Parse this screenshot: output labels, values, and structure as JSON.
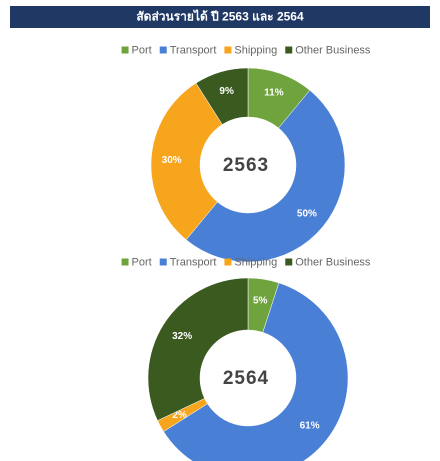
{
  "title": "สัดส่วนรายได้ ปี 2563 และ 2564",
  "chart_data": [
    {
      "type": "donut",
      "center_label": "2563",
      "categories": [
        "Port",
        "Transport",
        "Shipping",
        "Other Business"
      ],
      "values": [
        11,
        50,
        30,
        9
      ],
      "value_labels": [
        "11%",
        "50%",
        "30%",
        "9%"
      ],
      "colors": [
        "#6fa33e",
        "#4a7fd6",
        "#f6a51c",
        "#3b5a1f"
      ]
    },
    {
      "type": "donut",
      "center_label": "2564",
      "categories": [
        "Port",
        "Transport",
        "Shipping",
        "Other Business"
      ],
      "values": [
        5,
        61,
        2,
        32
      ],
      "value_labels": [
        "5%",
        "61%",
        "2%",
        "32%"
      ],
      "colors": [
        "#6fa33e",
        "#4a7fd6",
        "#f6a51c",
        "#3b5a1f"
      ]
    }
  ]
}
